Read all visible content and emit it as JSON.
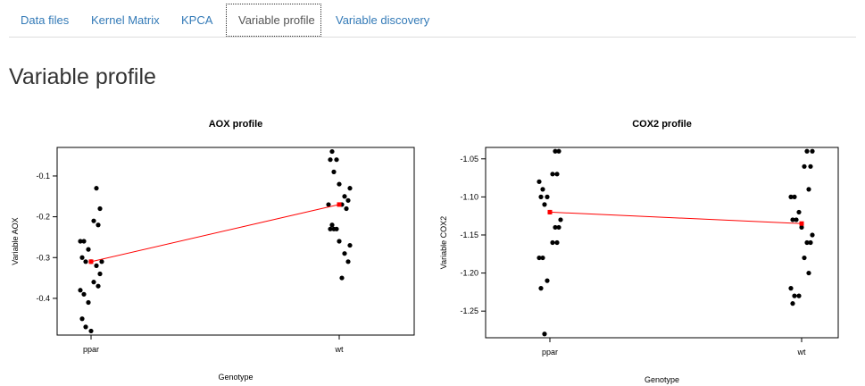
{
  "tabs": [
    {
      "label": "Data files",
      "active": false
    },
    {
      "label": "Kernel Matrix",
      "active": false
    },
    {
      "label": "KPCA",
      "active": false
    },
    {
      "label": "Variable profile",
      "active": true
    },
    {
      "label": "Variable discovery",
      "active": false
    }
  ],
  "page_title": "Variable profile",
  "colors": {
    "tab_link": "#337ab7",
    "points": "#000000",
    "mean_line": "#ff0000"
  },
  "chart_data": [
    {
      "type": "scatter",
      "title": "AOX profile",
      "xlabel": "Genotype",
      "ylabel": "Variable AOX",
      "categories": [
        "ppar",
        "wt"
      ],
      "ylim": [
        -0.49,
        -0.03
      ],
      "yticks": [
        -0.1,
        -0.2,
        -0.3,
        -0.4
      ],
      "ytick_labels": [
        "-0.1",
        "-0.2",
        "-0.3",
        "-0.4"
      ],
      "points": [
        {
          "x": 1,
          "y": -0.13
        },
        {
          "x": 1,
          "y": -0.18
        },
        {
          "x": 1,
          "y": -0.21
        },
        {
          "x": 1,
          "y": -0.22
        },
        {
          "x": 1,
          "y": -0.26
        },
        {
          "x": 1,
          "y": -0.26
        },
        {
          "x": 1,
          "y": -0.28
        },
        {
          "x": 1,
          "y": -0.3
        },
        {
          "x": 1,
          "y": -0.31
        },
        {
          "x": 1,
          "y": -0.31
        },
        {
          "x": 1,
          "y": -0.31
        },
        {
          "x": 1,
          "y": -0.32
        },
        {
          "x": 1,
          "y": -0.34
        },
        {
          "x": 1,
          "y": -0.36
        },
        {
          "x": 1,
          "y": -0.37
        },
        {
          "x": 1,
          "y": -0.38
        },
        {
          "x": 1,
          "y": -0.39
        },
        {
          "x": 1,
          "y": -0.41
        },
        {
          "x": 1,
          "y": -0.45
        },
        {
          "x": 1,
          "y": -0.47
        },
        {
          "x": 1,
          "y": -0.48
        },
        {
          "x": 2,
          "y": -0.04
        },
        {
          "x": 2,
          "y": -0.06
        },
        {
          "x": 2,
          "y": -0.06
        },
        {
          "x": 2,
          "y": -0.09
        },
        {
          "x": 2,
          "y": -0.12
        },
        {
          "x": 2,
          "y": -0.13
        },
        {
          "x": 2,
          "y": -0.15
        },
        {
          "x": 2,
          "y": -0.16
        },
        {
          "x": 2,
          "y": -0.17
        },
        {
          "x": 2,
          "y": -0.18
        },
        {
          "x": 2,
          "y": -0.17
        },
        {
          "x": 2,
          "y": -0.22
        },
        {
          "x": 2,
          "y": -0.23
        },
        {
          "x": 2,
          "y": -0.23
        },
        {
          "x": 2,
          "y": -0.23
        },
        {
          "x": 2,
          "y": -0.26
        },
        {
          "x": 2,
          "y": -0.27
        },
        {
          "x": 2,
          "y": -0.29
        },
        {
          "x": 2,
          "y": -0.31
        },
        {
          "x": 2,
          "y": -0.35
        }
      ],
      "means": [
        {
          "x": 1,
          "y": -0.31
        },
        {
          "x": 2,
          "y": -0.17
        }
      ]
    },
    {
      "type": "scatter",
      "title": "COX2 profile",
      "xlabel": "Genotype",
      "ylabel": "Variable COX2",
      "categories": [
        "ppar",
        "wt"
      ],
      "ylim": [
        -1.285,
        -1.035
      ],
      "yticks": [
        -1.05,
        -1.1,
        -1.15,
        -1.2,
        -1.25
      ],
      "ytick_labels": [
        "-1.05",
        "-1.10",
        "-1.15",
        "-1.20",
        "-1.25"
      ],
      "points": [
        {
          "x": 1,
          "y": -1.04
        },
        {
          "x": 1,
          "y": -1.04
        },
        {
          "x": 1,
          "y": -1.07
        },
        {
          "x": 1,
          "y": -1.07
        },
        {
          "x": 1,
          "y": -1.08
        },
        {
          "x": 1,
          "y": -1.09
        },
        {
          "x": 1,
          "y": -1.1
        },
        {
          "x": 1,
          "y": -1.1
        },
        {
          "x": 1,
          "y": -1.11
        },
        {
          "x": 1,
          "y": -1.12
        },
        {
          "x": 1,
          "y": -1.13
        },
        {
          "x": 1,
          "y": -1.14
        },
        {
          "x": 1,
          "y": -1.14
        },
        {
          "x": 1,
          "y": -1.16
        },
        {
          "x": 1,
          "y": -1.16
        },
        {
          "x": 1,
          "y": -1.18
        },
        {
          "x": 1,
          "y": -1.18
        },
        {
          "x": 1,
          "y": -1.21
        },
        {
          "x": 1,
          "y": -1.22
        },
        {
          "x": 1,
          "y": -1.28
        },
        {
          "x": 2,
          "y": -1.04
        },
        {
          "x": 2,
          "y": -1.04
        },
        {
          "x": 2,
          "y": -1.06
        },
        {
          "x": 2,
          "y": -1.06
        },
        {
          "x": 2,
          "y": -1.09
        },
        {
          "x": 2,
          "y": -1.1
        },
        {
          "x": 2,
          "y": -1.1
        },
        {
          "x": 2,
          "y": -1.12
        },
        {
          "x": 2,
          "y": -1.13
        },
        {
          "x": 2,
          "y": -1.13
        },
        {
          "x": 2,
          "y": -1.14
        },
        {
          "x": 2,
          "y": -1.15
        },
        {
          "x": 2,
          "y": -1.16
        },
        {
          "x": 2,
          "y": -1.16
        },
        {
          "x": 2,
          "y": -1.18
        },
        {
          "x": 2,
          "y": -1.2
        },
        {
          "x": 2,
          "y": -1.22
        },
        {
          "x": 2,
          "y": -1.23
        },
        {
          "x": 2,
          "y": -1.23
        },
        {
          "x": 2,
          "y": -1.24
        }
      ],
      "means": [
        {
          "x": 1,
          "y": -1.12
        },
        {
          "x": 2,
          "y": -1.135
        }
      ]
    }
  ]
}
